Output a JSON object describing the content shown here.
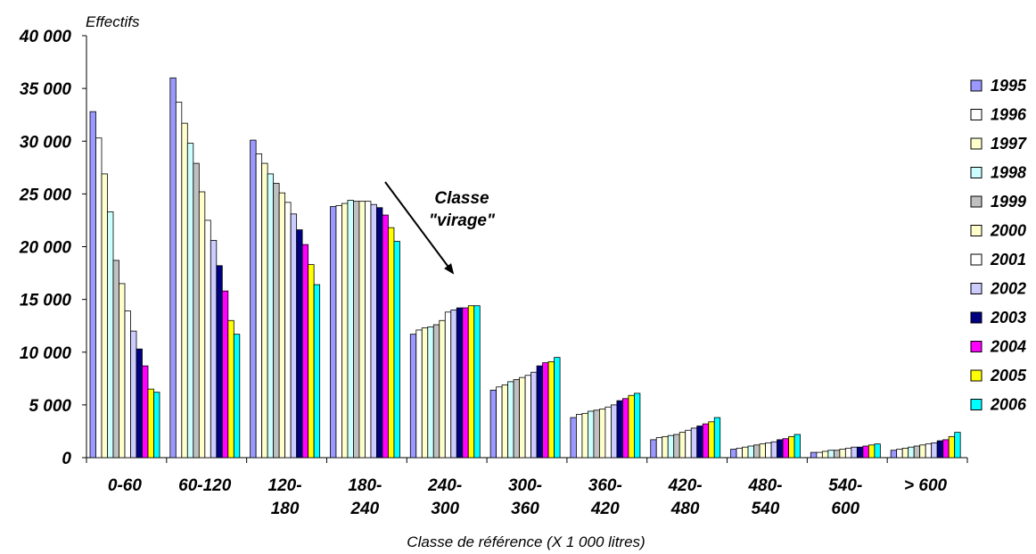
{
  "chart_data": {
    "type": "bar",
    "ylabel": "Effectifs",
    "xlabel": "Classe de référence (X 1 000 litres)",
    "ylim": [
      0,
      40000
    ],
    "y_ticks": [
      "0",
      "5 000",
      "10 000",
      "15 000",
      "20 000",
      "25 000",
      "30 000",
      "35 000",
      "40 000"
    ],
    "y_tick_values": [
      0,
      5000,
      10000,
      15000,
      20000,
      25000,
      30000,
      35000,
      40000
    ],
    "grid": false,
    "legend_position": "right",
    "categories": [
      [
        "0-60"
      ],
      [
        "60-120"
      ],
      [
        "120-",
        "180"
      ],
      [
        "180-",
        "240"
      ],
      [
        "240-",
        "300"
      ],
      [
        "300-",
        "360"
      ],
      [
        "360-",
        "420"
      ],
      [
        "420-",
        "480"
      ],
      [
        "480-",
        "540"
      ],
      [
        "540-",
        "600"
      ],
      [
        "> 600"
      ]
    ],
    "annotation": {
      "lines": [
        "Classe",
        "\"virage\""
      ]
    },
    "series": [
      {
        "name": "1995",
        "color": "#9999ff",
        "values": [
          32800,
          36000,
          30100,
          23800,
          11700,
          6400,
          3800,
          1700,
          800,
          500,
          700
        ]
      },
      {
        "name": "1996",
        "color": "#ffffff",
        "values": [
          30300,
          33700,
          28800,
          23900,
          12100,
          6700,
          4100,
          1900,
          900,
          500,
          800
        ]
      },
      {
        "name": "1997",
        "color": "#ffffcc",
        "values": [
          26900,
          31700,
          27900,
          24100,
          12300,
          6900,
          4200,
          2000,
          1000,
          600,
          900
        ]
      },
      {
        "name": "1998",
        "color": "#ccffff",
        "values": [
          23300,
          29800,
          26900,
          24400,
          12400,
          7200,
          4400,
          2100,
          1100,
          700,
          1000
        ]
      },
      {
        "name": "1999",
        "color": "#c0c0c0",
        "values": [
          18700,
          27900,
          26000,
          24300,
          12600,
          7400,
          4500,
          2200,
          1200,
          700,
          1100
        ]
      },
      {
        "name": "2000",
        "color": "#ffffcc",
        "values": [
          16500,
          25200,
          25100,
          24300,
          13000,
          7600,
          4600,
          2400,
          1300,
          800,
          1200
        ]
      },
      {
        "name": "2001",
        "color": "#ffffff",
        "values": [
          13900,
          22500,
          24200,
          24300,
          13800,
          7800,
          4800,
          2600,
          1400,
          900,
          1300
        ]
      },
      {
        "name": "2002",
        "color": "#ccccff",
        "values": [
          12000,
          20600,
          23100,
          24000,
          14000,
          8100,
          5000,
          2800,
          1500,
          1000,
          1400
        ]
      },
      {
        "name": "2003",
        "color": "#000080",
        "values": [
          10300,
          18200,
          21600,
          23700,
          14200,
          8700,
          5400,
          3000,
          1700,
          1000,
          1600
        ]
      },
      {
        "name": "2004",
        "color": "#ff00ff",
        "values": [
          8700,
          15800,
          20200,
          23000,
          14200,
          9000,
          5600,
          3200,
          1800,
          1100,
          1700
        ]
      },
      {
        "name": "2005",
        "color": "#ffff00",
        "values": [
          6500,
          13000,
          18300,
          21800,
          14400,
          9100,
          5900,
          3400,
          2000,
          1200,
          2000
        ]
      },
      {
        "name": "2006",
        "color": "#00ffff",
        "values": [
          6200,
          11700,
          16400,
          20500,
          14400,
          9500,
          6100,
          3800,
          2200,
          1300,
          2400
        ]
      }
    ]
  }
}
